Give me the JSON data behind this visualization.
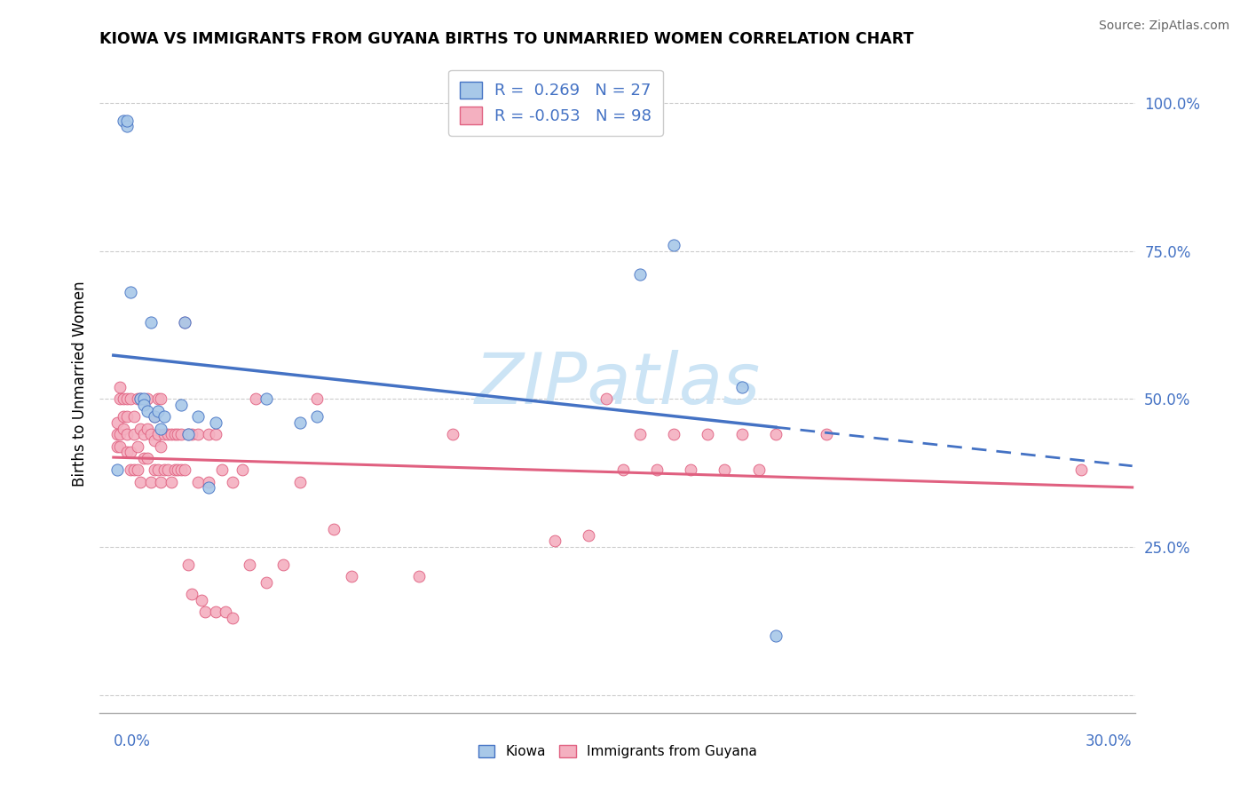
{
  "title": "KIOWA VS IMMIGRANTS FROM GUYANA BIRTHS TO UNMARRIED WOMEN CORRELATION CHART",
  "source": "Source: ZipAtlas.com",
  "ylabel": "Births to Unmarried Women",
  "legend_kiowa_R": "0.269",
  "legend_kiowa_N": "27",
  "legend_guyana_R": "-0.053",
  "legend_guyana_N": "98",
  "kiowa_fill": "#a8c8e8",
  "kiowa_edge": "#4472c4",
  "guyana_fill": "#f4b0c0",
  "guyana_edge": "#e06080",
  "kiowa_line": "#4472c4",
  "guyana_line": "#e06080",
  "grid_color": "#cccccc",
  "axis_label_color": "#4472c4",
  "xlim": [
    0.0,
    0.3
  ],
  "ylim": [
    -0.03,
    1.08
  ],
  "ytick_vals": [
    0.0,
    0.25,
    0.5,
    0.75,
    1.0
  ],
  "ytick_labels": [
    "",
    "25.0%",
    "50.0%",
    "75.0%",
    "100.0%"
  ],
  "kiowa_x": [
    0.001,
    0.003,
    0.004,
    0.004,
    0.005,
    0.008,
    0.009,
    0.009,
    0.01,
    0.011,
    0.012,
    0.013,
    0.014,
    0.015,
    0.02,
    0.021,
    0.022,
    0.025,
    0.028,
    0.03,
    0.045,
    0.055,
    0.06,
    0.155,
    0.165,
    0.185,
    0.195
  ],
  "kiowa_y": [
    0.38,
    0.97,
    0.96,
    0.97,
    0.68,
    0.5,
    0.5,
    0.49,
    0.48,
    0.63,
    0.47,
    0.48,
    0.45,
    0.47,
    0.49,
    0.63,
    0.44,
    0.47,
    0.35,
    0.46,
    0.5,
    0.46,
    0.47,
    0.71,
    0.76,
    0.52,
    0.1
  ],
  "guyana_x": [
    0.001,
    0.001,
    0.001,
    0.002,
    0.002,
    0.002,
    0.002,
    0.003,
    0.003,
    0.003,
    0.004,
    0.004,
    0.004,
    0.004,
    0.005,
    0.005,
    0.005,
    0.006,
    0.006,
    0.006,
    0.007,
    0.007,
    0.007,
    0.008,
    0.008,
    0.008,
    0.009,
    0.009,
    0.01,
    0.01,
    0.01,
    0.011,
    0.011,
    0.012,
    0.012,
    0.012,
    0.013,
    0.013,
    0.013,
    0.014,
    0.014,
    0.014,
    0.015,
    0.015,
    0.016,
    0.016,
    0.017,
    0.017,
    0.018,
    0.018,
    0.019,
    0.019,
    0.02,
    0.02,
    0.021,
    0.021,
    0.022,
    0.022,
    0.023,
    0.023,
    0.025,
    0.025,
    0.026,
    0.027,
    0.028,
    0.028,
    0.03,
    0.03,
    0.032,
    0.033,
    0.035,
    0.035,
    0.038,
    0.04,
    0.042,
    0.045,
    0.05,
    0.055,
    0.06,
    0.065,
    0.07,
    0.09,
    0.1,
    0.13,
    0.14,
    0.145,
    0.15,
    0.155,
    0.16,
    0.165,
    0.17,
    0.175,
    0.18,
    0.185,
    0.19,
    0.195,
    0.21,
    0.285
  ],
  "guyana_y": [
    0.42,
    0.44,
    0.46,
    0.42,
    0.44,
    0.5,
    0.52,
    0.45,
    0.47,
    0.5,
    0.41,
    0.44,
    0.47,
    0.5,
    0.38,
    0.41,
    0.5,
    0.38,
    0.44,
    0.47,
    0.38,
    0.42,
    0.5,
    0.36,
    0.45,
    0.5,
    0.4,
    0.44,
    0.4,
    0.45,
    0.5,
    0.36,
    0.44,
    0.38,
    0.43,
    0.47,
    0.38,
    0.44,
    0.5,
    0.36,
    0.42,
    0.5,
    0.38,
    0.44,
    0.38,
    0.44,
    0.36,
    0.44,
    0.38,
    0.44,
    0.38,
    0.44,
    0.38,
    0.44,
    0.38,
    0.63,
    0.22,
    0.44,
    0.17,
    0.44,
    0.36,
    0.44,
    0.16,
    0.14,
    0.36,
    0.44,
    0.14,
    0.44,
    0.38,
    0.14,
    0.36,
    0.13,
    0.38,
    0.22,
    0.5,
    0.19,
    0.22,
    0.36,
    0.5,
    0.28,
    0.2,
    0.2,
    0.44,
    0.26,
    0.27,
    0.5,
    0.38,
    0.44,
    0.38,
    0.44,
    0.38,
    0.44,
    0.38,
    0.44,
    0.38,
    0.44,
    0.44,
    0.38
  ]
}
